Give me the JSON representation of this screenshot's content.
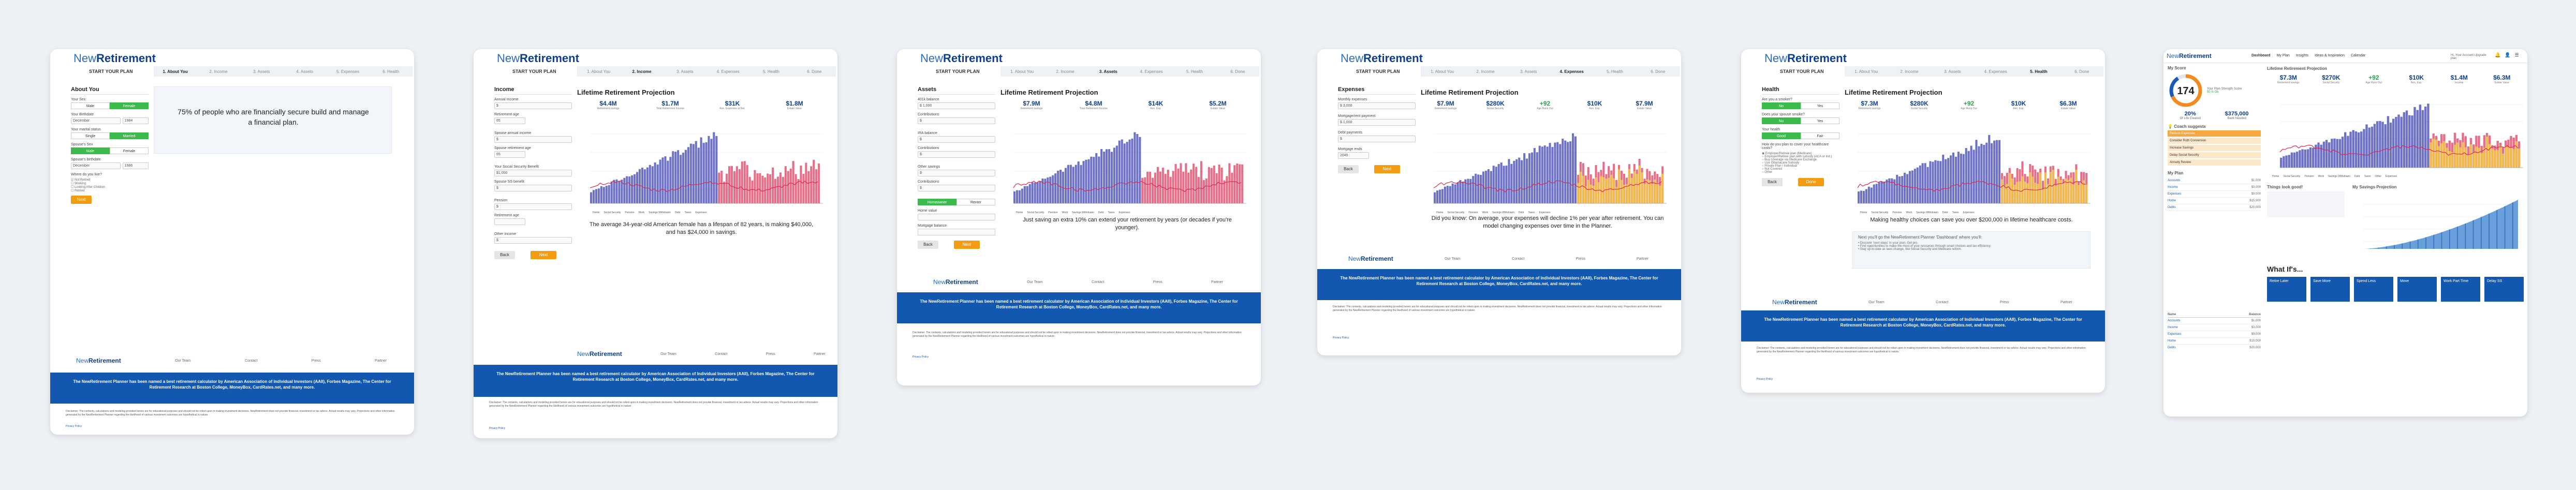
{
  "brand": {
    "new": "New",
    "ret": "Retirement"
  },
  "start_plan": "START YOUR PLAN",
  "steps": [
    "1. About You",
    "2. Income",
    "3. Assets",
    "4. Assets",
    "5. Expenses",
    "6. Health"
  ],
  "steps_b": [
    "1. About You",
    "2. Income",
    "3. Assets",
    "4. Expenses",
    "5. Health",
    "6. Done"
  ],
  "about": {
    "title": "About You",
    "labels": [
      "Your Sex",
      "Your Birthdate",
      "Your marital status",
      "Spouse's Sex",
      "Spouse's birthdate",
      "Where do you live?"
    ],
    "vals": [
      "Male",
      "Female",
      "December",
      "1984",
      "Single",
      "Married",
      "December",
      "1986"
    ],
    "checks": [
      "Not Retired",
      "Working",
      "Looking After Children",
      "Retired"
    ],
    "blurb": "75% of people who are financially secure build and manage a financial plan."
  },
  "income": {
    "title": "Income",
    "labels": [
      "Annual Income",
      "Retirement age",
      "Spouse annual income",
      "Spouse retirement age",
      "Your Social Security Benefit",
      "Spouse SS benefit",
      "Pension",
      "Retirement age",
      "Other income"
    ],
    "vals": [
      "$",
      "65",
      "$",
      "65",
      "$1,000",
      "$",
      "$"
    ],
    "caption": "The average 34-year-old American female has a lifespan of 82 years, is making $40,000, and has $24,000 in savings."
  },
  "assets": {
    "title": "Assets",
    "labels": [
      "401k balance",
      "Contributions",
      "IRA balance",
      "Contributions",
      "Other savings",
      "Contributions",
      "Home value",
      "Mortgage balance"
    ],
    "vals": [
      "$ 1,000",
      "$",
      "$",
      "$",
      "$",
      "$",
      "Homeowner",
      "Renter"
    ],
    "caption": "Just saving an extra 10% can extend your retirement by years (or decades if you're younger)."
  },
  "expenses": {
    "title": "Expenses",
    "labels": [
      "Monthly expenses",
      "Mortgage/rent payment",
      "Debt payments",
      "Mortgage ends",
      "Other expenses"
    ],
    "vals": [
      "$ 3,000",
      "$ 1,000",
      "$",
      "2045"
    ],
    "caption": "Did you know: On average, your expenses will decline 1% per year after retirement. You can model changing expenses over time in the Planner."
  },
  "health": {
    "title": "Health",
    "labels": [
      "Are you a smoker?",
      "Does your spouse smoke?",
      "Your health",
      "Spouse's health",
      "How do you plan to cover your healthcare costs?"
    ],
    "vals": [
      "No",
      "Yes",
      "Good",
      "Fair"
    ],
    "options": [
      "Employer/Retiree plan (Medicare)",
      "Employer/Retiree plan with subsidy (ACA or Ind.)",
      "Buy coverage via Medicare Exchange",
      "Use Obamacare Subsidy",
      "Private Plan / Individual",
      "Not Covered",
      "Other"
    ],
    "caption": "Making healthy choices can save you over $200,000 in lifetime healthcare costs.",
    "next": [
      "Discover 'next steps' in your plan. Get pro.",
      "Find opportunities to make the most of your resources through smart choices and tax efficiency.",
      "Stay up-to-date as laws change, like Social Security and Medicare reform."
    ],
    "next_title": "Next you'll go the NewRetirement Planner 'Dashboard' where you'll:"
  },
  "projection": {
    "title": "Lifetime Retirement Projection",
    "sets": [
      {
        "vals": [
          "$4.4M",
          "$1.7M",
          "$31K",
          "$1.8M"
        ],
        "labels": [
          "Retirement savings",
          "Total Retirement Income",
          "Ann. Expenses at Ret.",
          "Estate Value"
        ]
      },
      {
        "vals": [
          "$7.9M",
          "$4.8M",
          "$14K",
          "$5.2M"
        ],
        "labels": [
          "Retirement savings",
          "Total Retirement Income",
          "Ann. Exp.",
          "Estate Value"
        ]
      },
      {
        "vals": [
          "$7.3M",
          "$4.8M",
          "$17K",
          "$3.5M"
        ],
        "labels": [
          "Retirement savings",
          "Total Retirement Income",
          "Ann. Exp.",
          "Estate Value"
        ]
      },
      {
        "vals": [
          "$7.9M",
          "$280K",
          "+92",
          "$10K",
          "$7.9M"
        ],
        "labels": [
          "Retirement savings",
          "Social Security",
          "Age Runs Out",
          "Ann. Exp.",
          "Estate Value"
        ]
      },
      {
        "vals": [
          "$7.3M",
          "$280K",
          "+92",
          "$10K",
          "$6.3M"
        ],
        "labels": [
          "Retirement savings",
          "Social Security",
          "Age Runs Out",
          "Ann. Exp.",
          "Estate Value"
        ]
      }
    ],
    "legend": [
      "Home",
      "Social Security",
      "Pension",
      "Work",
      "Savings Withdrawn",
      "Debt",
      "Taxes",
      "Other",
      "Expenses",
      "Taxes"
    ]
  },
  "footer": {
    "links": [
      "Our Team",
      "Contact",
      "Press",
      "Partner"
    ],
    "award": "The NewRetirement Planner has been named a best retirement calculator by American Association of Individual Investors (AAII), Forbes Magazine, The Center for Retirement Research at Boston College, MoneyBox, CardRates.net, and many more.",
    "disclaimer": "Disclaimer: The contents, calculations and modeling provided herein are for educational purposes and should not be relied upon in making investment decisions. NewRetirement does not provide financial, investment or tax advice. Actual results may vary. Projections and other information generated by the NewRetirement Planner regarding the likelihood of various investment outcomes are hypothetical in nature.",
    "privacy": "Privacy Policy"
  },
  "dashboard": {
    "tabs": [
      "Dashboard",
      "My Plan",
      "Insights",
      "Ideas & Inspiration",
      "Calendar"
    ],
    "user": "Hi, Your Account  Upgrade plan",
    "score_title": "My Score",
    "score": "174",
    "score_labels": [
      "Your Plan Strength Score",
      "50 Is Ok"
    ],
    "score_vals": [
      "20%",
      "$375,000"
    ],
    "score_sub": [
      "Of Life Cleared",
      "Bank Needed"
    ],
    "proj_vals": [
      "$7.3M",
      "$270K",
      "+92",
      "$10K",
      "$1.4M",
      "$6.3M"
    ],
    "proj_labels": [
      "Retirement savings",
      "Social Security",
      "Age Runs Out",
      "Ann. Exp.",
      "Income",
      "Estate Value"
    ],
    "coach_title": "Coach suggests",
    "coach_items": [
      "Reduce Expenses",
      "Consider Roth Conversion",
      "Increase Savings",
      "Delay Social Security",
      "Annuity Review"
    ],
    "myplan": "My Plan",
    "myplan_rows": [
      "Accounts",
      "Income",
      "Expenses",
      "Home",
      "Debts"
    ],
    "goodnews": "Things look good!",
    "savings_proj": "My Savings Projection",
    "whatif": "What If's...",
    "whatif_cards": [
      "Retire Later",
      "Save More",
      "Spend Less",
      "Move",
      "Work Part Time",
      "Delay SS"
    ],
    "table_heads": [
      "Name",
      "Balance"
    ],
    "table_rows": [
      "$1,000",
      "$3,000",
      "$9,000",
      "$15,000",
      "$20,000"
    ]
  }
}
